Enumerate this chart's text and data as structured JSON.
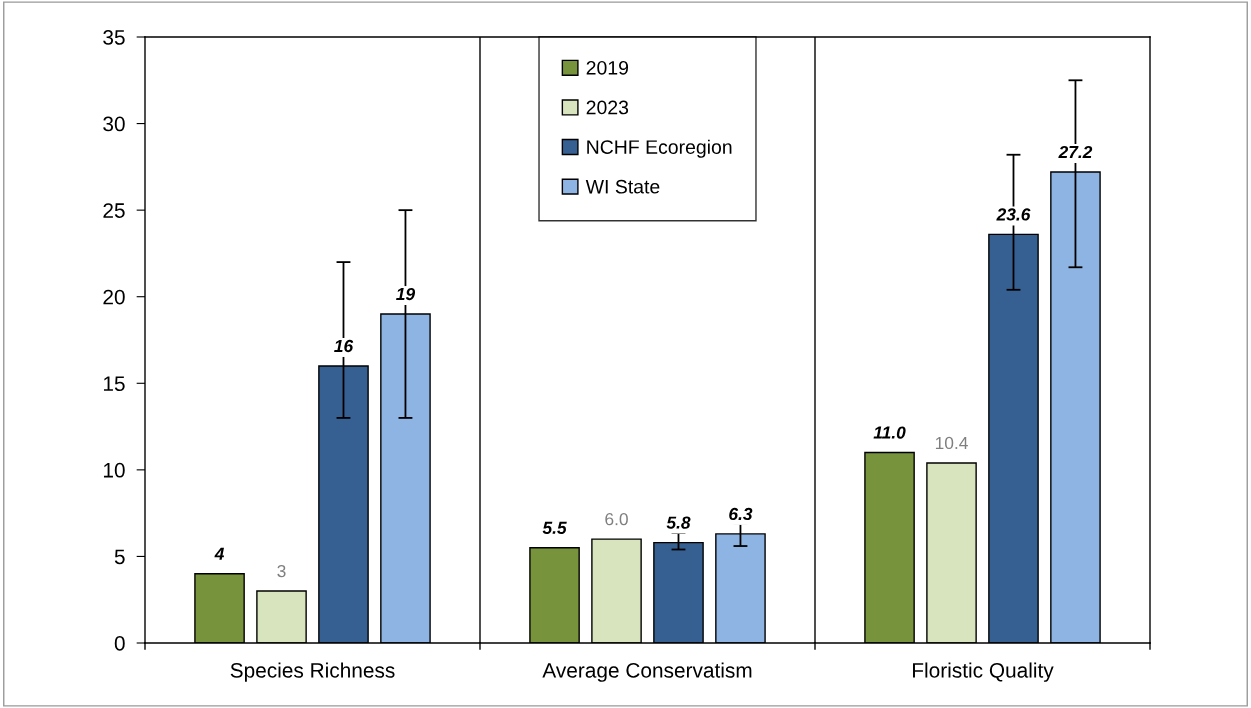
{
  "chart_data": {
    "type": "bar",
    "categories": [
      "Species Richness",
      "Average Conservatism",
      "Floristic Quality"
    ],
    "series": [
      {
        "name": "2019",
        "color": "#77933c",
        "values": [
          4,
          5.5,
          11.0
        ],
        "value_labels": [
          "4",
          "5.5",
          "11.0"
        ]
      },
      {
        "name": "2023",
        "color": "#d7e4bd",
        "values": [
          3,
          6.0,
          10.4
        ],
        "value_labels": [
          "3",
          "6.0",
          "10.4"
        ]
      },
      {
        "name": "NCHF Ecoregion",
        "color": "#376092",
        "values": [
          16,
          5.8,
          23.6
        ],
        "value_labels": [
          "16",
          "5.8",
          "23.6"
        ],
        "errors": [
          [
            13,
            22
          ],
          [
            5.4,
            6.35
          ],
          [
            20.4,
            28.2
          ]
        ]
      },
      {
        "name": "WI State",
        "color": "#8db4e2",
        "values": [
          19,
          6.3,
          27.2
        ],
        "value_labels": [
          "19",
          "6.3",
          "27.2"
        ],
        "errors": [
          [
            13,
            25
          ],
          [
            5.6,
            6.9
          ],
          [
            21.7,
            32.5
          ]
        ]
      }
    ],
    "ylim": [
      0,
      35
    ],
    "yticks": [
      0,
      5,
      10,
      15,
      20,
      25,
      30,
      35
    ],
    "grid": false,
    "legend": "top"
  }
}
